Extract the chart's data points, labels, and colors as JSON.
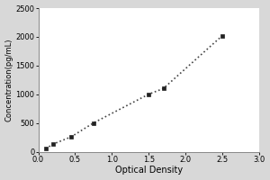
{
  "x_values": [
    0.1,
    0.2,
    0.45,
    0.75,
    1.5,
    1.7,
    2.5
  ],
  "y_values": [
    50,
    130,
    260,
    500,
    1000,
    1100,
    2020
  ],
  "xlabel": "Optical Density",
  "ylabel": "Concentration(pg/mL)",
  "xlim": [
    0,
    3
  ],
  "ylim": [
    0,
    2500
  ],
  "xticks": [
    0,
    0.5,
    1,
    1.5,
    2,
    2.5,
    3
  ],
  "yticks": [
    0,
    500,
    1000,
    1500,
    2000,
    2500
  ],
  "line_color": "#444444",
  "marker_color": "#222222",
  "bg_color": "#d8d8d8",
  "plot_bg_color": "#ffffff",
  "marker": "s",
  "marker_size": 3,
  "line_style": ":",
  "line_width": 1.2,
  "tick_fontsize": 6,
  "xlabel_fontsize": 7,
  "ylabel_fontsize": 6
}
